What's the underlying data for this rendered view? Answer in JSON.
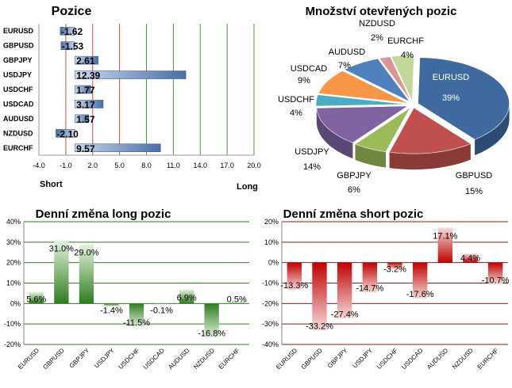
{
  "chart_data": [
    {
      "id": "positions",
      "type": "bar",
      "orientation": "horizontal",
      "title": "Pozice",
      "categories": [
        "EURUSD",
        "GBPUSD",
        "GBPJPY",
        "USDJPY",
        "USDCHF",
        "USDCAD",
        "AUDUSD",
        "NZDUSD",
        "EURCHF"
      ],
      "values": [
        -1.62,
        -1.53,
        2.61,
        12.39,
        1.77,
        3.17,
        1.57,
        -2.1,
        9.57
      ],
      "value_labels": [
        "-1.62",
        "-1.53",
        "2.61",
        "12.39",
        "1.77",
        "3.17",
        "1.57",
        "-2.10",
        "9.57"
      ],
      "xlim": [
        -4.0,
        20.0
      ],
      "xticks": [
        -4.0,
        -1.0,
        2.0,
        5.0,
        8.0,
        11.0,
        14.0,
        17.0,
        20.0
      ],
      "xtick_labels": [
        "-4.0",
        "-1.0",
        "2.0",
        "5.0",
        "8.0",
        "11.0",
        "14.0",
        "17.0",
        "20.0"
      ],
      "short_label": "Short",
      "long_label": "Long",
      "colors": {
        "bar": "#4a6fa5",
        "bar_light": "#c9d8ee",
        "red_line": "#c0504d",
        "green_line": "#4e9a3c"
      }
    },
    {
      "id": "open-positions",
      "type": "pie",
      "title": "Množství otevřených pozic",
      "slices": [
        {
          "label": "EURUSD",
          "value": 39,
          "pct": "39%",
          "color": "#3f6aa0"
        },
        {
          "label": "GBPUSD",
          "value": 15,
          "pct": "15%",
          "color": "#c0504d"
        },
        {
          "label": "GBPJPY",
          "value": 6,
          "pct": "6%",
          "color": "#9bbb59"
        },
        {
          "label": "USDJPY",
          "value": 14,
          "pct": "14%",
          "color": "#8064a2"
        },
        {
          "label": "USDCHF",
          "value": 4,
          "pct": "4%",
          "color": "#4bacc6"
        },
        {
          "label": "USDCAD",
          "value": 9,
          "pct": "9%",
          "color": "#f79646"
        },
        {
          "label": "AUDUSD",
          "value": 7,
          "pct": "7%",
          "color": "#4f81bd"
        },
        {
          "label": "NZDUSD",
          "value": 2,
          "pct": "2%",
          "color": "#d99694"
        },
        {
          "label": "EURCHF",
          "value": 4,
          "pct": "4%",
          "color": "#c3d69b"
        }
      ]
    },
    {
      "id": "daily-long",
      "type": "bar",
      "title": "Denní změna long pozic",
      "categories": [
        "EURUSD",
        "GBPUSD",
        "GBPJPY",
        "USDJPY",
        "USDCHF",
        "USDCAD",
        "AUDUSD",
        "NZDUSD",
        "EURCHF"
      ],
      "values": [
        5.6,
        31.0,
        29.0,
        -1.4,
        -11.5,
        -0.1,
        6.9,
        -16.8,
        0.5
      ],
      "value_labels": [
        "5.6%",
        "31.0%",
        "29.0%",
        "-1.4%",
        "-11.5%",
        "-0.1%",
        "6.9%",
        "-16.8%",
        "0.5%"
      ],
      "ylim": [
        -20,
        40
      ],
      "yticks": [
        -20,
        -10,
        0,
        10,
        20,
        30,
        40
      ],
      "ytick_labels": [
        "-20%",
        "-10%",
        "0%",
        "10%",
        "20%",
        "30%",
        "40%"
      ],
      "colors": {
        "bar": "#2e7d1e",
        "bar_light": "#e6f2e0",
        "grid": "#2e7d1e"
      }
    },
    {
      "id": "daily-short",
      "type": "bar",
      "title": "Denní změna short pozic",
      "categories": [
        "EURUSD",
        "GBPUSD",
        "GBPJPY",
        "USDJPY",
        "USDCHF",
        "USDCAD",
        "AUDUSD",
        "NZDUSD",
        "EURCHF"
      ],
      "values": [
        -13.3,
        -33.2,
        -27.4,
        -14.7,
        -3.2,
        -17.6,
        17.1,
        4.4,
        -10.7
      ],
      "value_labels": [
        "-13.3%",
        "-33.2%",
        "-27.4%",
        "-14.7%",
        "-3.2%",
        "-17.6%",
        "17.1%",
        "4.4%",
        "-10.7%"
      ],
      "ylim": [
        -40,
        20
      ],
      "yticks": [
        -40,
        -30,
        -20,
        -10,
        0,
        10,
        20
      ],
      "ytick_labels": [
        "-40%",
        "-30%",
        "-20%",
        "-10%",
        "0%",
        "10%",
        "20%"
      ],
      "colors": {
        "bar": "#c00000",
        "bar_light": "#f6dcdc",
        "grid": "#8b1a1a"
      }
    }
  ]
}
